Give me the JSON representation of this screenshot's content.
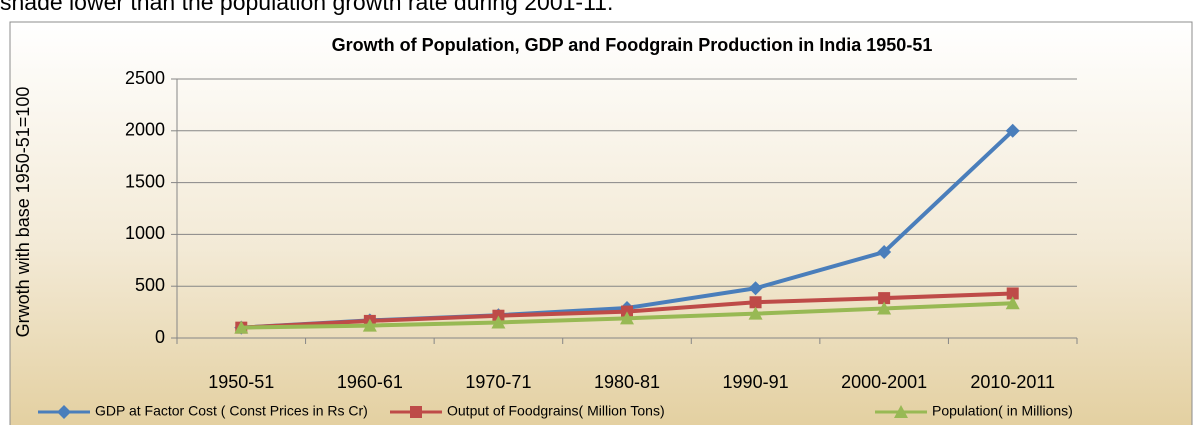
{
  "text_above": "shade lower than the population growth rate during 2001-11.",
  "chart_data": {
    "type": "line",
    "title": "Growth of Population, GDP and Foodgrain Production in India 1950-51",
    "y_label": "Grwoth with base 1950-51=100",
    "categories": [
      "1950-51",
      "1960-61",
      "1970-71",
      "1980-81",
      "1990-91",
      "2000-2001",
      "2010-2011"
    ],
    "series": [
      {
        "name": "GDP at Factor Cost ( Const Prices in Rs Cr)",
        "color": "#4a7ebb",
        "marker": "diamond",
        "values": [
          100,
          170,
          220,
          290,
          480,
          830,
          2000
        ]
      },
      {
        "name": "Output of Foodgrains( Million Tons)",
        "color": "#be4b48",
        "marker": "square",
        "values": [
          100,
          165,
          215,
          255,
          345,
          385,
          430
        ]
      },
      {
        "name": "Population( in Millions)",
        "color": "#98b954",
        "marker": "triangle",
        "values": [
          100,
          120,
          150,
          190,
          235,
          285,
          335
        ]
      }
    ],
    "ylim": [
      0,
      2500
    ],
    "yticks": [
      0,
      500,
      1000,
      1500,
      2000,
      2500
    ],
    "grid": true,
    "legend": "bottom"
  }
}
